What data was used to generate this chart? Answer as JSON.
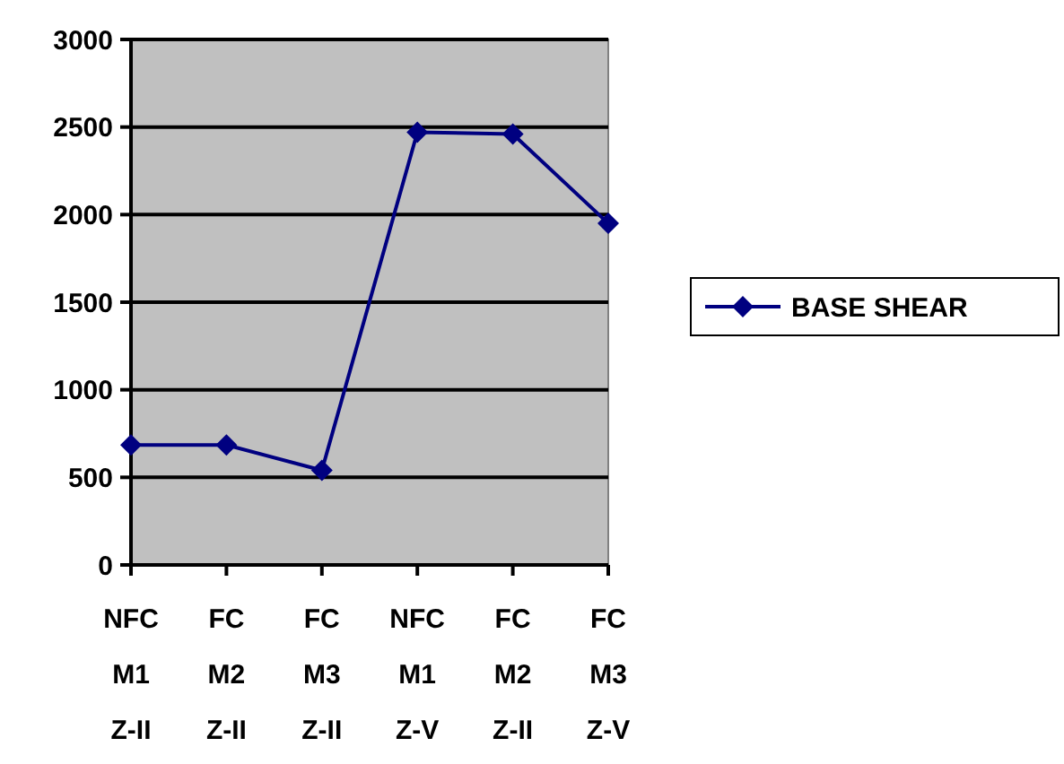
{
  "chart_data": {
    "type": "line",
    "categories": [
      "NFC M1 Z-II",
      "FC M2 Z-II",
      "FC M3 Z-II",
      "NFC M1 Z-V",
      "FC M2 Z-II",
      "FC M3 Z-V"
    ],
    "series": [
      {
        "name": "BASE SHEAR",
        "color": "#000080",
        "values": [
          685,
          685,
          540,
          2470,
          2460,
          1950
        ]
      }
    ],
    "ylim": [
      0,
      3000
    ],
    "yticks": [
      0,
      500,
      1000,
      1500,
      2000,
      2500,
      3000
    ],
    "grid": "y",
    "legend": "right",
    "marker": "diamond",
    "line_style": "solid"
  }
}
